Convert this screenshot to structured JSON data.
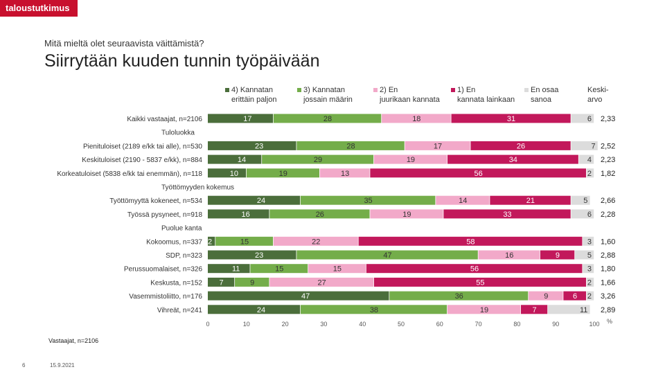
{
  "brand": "taloustutkimus",
  "subtitle": "Mitä mieltä olet seuraavista väittämistä?",
  "title": "Siirrytään kuuden tunnin työpäivään",
  "footer_note": "Vastaajat, n=2106",
  "page_number": "6",
  "date": "15.9.2021",
  "colors": {
    "s1": "#4b6e3b",
    "s2": "#74ad4a",
    "s3": "#f2a9c9",
    "s4": "#c2185b",
    "s5": "#dcdcdc"
  },
  "chart_data": {
    "type": "bar",
    "orientation": "horizontal",
    "stacked": true,
    "xlim": [
      0,
      100
    ],
    "x_ticks": [
      "0",
      "10",
      "20",
      "30",
      "40",
      "50",
      "60",
      "70",
      "80",
      "90",
      "100"
    ],
    "x_unit": "%",
    "legend_position": "top",
    "series": [
      {
        "name": "4) Kannatan erittäin paljon"
      },
      {
        "name": "3) Kannatan jossain määrin"
      },
      {
        "name": "2) En juurikaan kannata"
      },
      {
        "name": "1) En kannata lainkaan"
      },
      {
        "name": "En osaa sanoa"
      }
    ],
    "mean_header": "Keski-arvo",
    "rows": [
      {
        "kind": "bar",
        "label": "Kaikki vastaajat, n=2106",
        "values": [
          17,
          28,
          18,
          31,
          6
        ],
        "mean": "2,33"
      },
      {
        "kind": "group",
        "label": "Tuloluokka"
      },
      {
        "kind": "bar",
        "label": "Pienituloiset (2189 e/kk tai alle), n=530",
        "values": [
          23,
          28,
          17,
          26,
          7
        ],
        "mean": "2,52"
      },
      {
        "kind": "bar",
        "label": "Keskituloiset (2190 - 5837 e/kk), n=884",
        "values": [
          14,
          29,
          19,
          34,
          4
        ],
        "mean": "2,23"
      },
      {
        "kind": "bar",
        "label": "Korkeatuloiset (5838 e/kk tai enemmän), n=118",
        "values": [
          10,
          19,
          13,
          56,
          2
        ],
        "mean": "1,82"
      },
      {
        "kind": "group",
        "label": "Työttömyyden kokemus"
      },
      {
        "kind": "bar",
        "label": "Työttömyyttä kokeneet, n=534",
        "values": [
          24,
          35,
          14,
          21,
          5
        ],
        "mean": "2,66"
      },
      {
        "kind": "bar",
        "label": "Työssä pysyneet, n=918",
        "values": [
          16,
          26,
          19,
          33,
          6
        ],
        "mean": "2,28"
      },
      {
        "kind": "group",
        "label": "Puolue kanta"
      },
      {
        "kind": "bar",
        "label": "Kokoomus, n=337",
        "values": [
          2,
          15,
          22,
          58,
          3
        ],
        "mean": "1,60"
      },
      {
        "kind": "bar",
        "label": "SDP, n=323",
        "values": [
          23,
          47,
          16,
          9,
          5
        ],
        "mean": "2,88"
      },
      {
        "kind": "bar",
        "label": "Perussuomalaiset, n=326",
        "values": [
          11,
          15,
          15,
          56,
          3
        ],
        "mean": "1,80"
      },
      {
        "kind": "bar",
        "label": "Keskusta, n=152",
        "values": [
          7,
          9,
          27,
          55,
          2
        ],
        "mean": "1,66"
      },
      {
        "kind": "bar",
        "label": "Vasemmistoliitto, n=176",
        "values": [
          47,
          36,
          9,
          6,
          2
        ],
        "mean": "3,26"
      },
      {
        "kind": "bar",
        "label": "Vihreät, n=241",
        "values": [
          24,
          38,
          19,
          7,
          11
        ],
        "mean": "2,89"
      }
    ]
  }
}
